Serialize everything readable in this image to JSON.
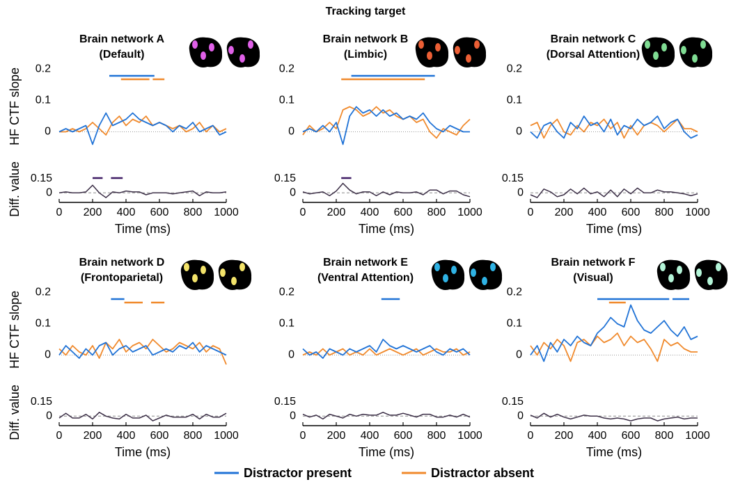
{
  "title": "Tracking target",
  "x_label": "Time (ms)",
  "y_label": "HF CTF slope",
  "diff_label": "Diff. value",
  "series": [
    {
      "name": "Distractor present",
      "color": "#1f72d6"
    },
    {
      "name": "Distractor absent",
      "color": "#f0892b"
    }
  ],
  "diff_color": "#3b2e46",
  "sig_diff_color": "#3d1a63",
  "x": [
    0,
    40,
    80,
    120,
    160,
    200,
    240,
    280,
    320,
    360,
    400,
    440,
    480,
    520,
    560,
    600,
    640,
    680,
    720,
    760,
    800,
    840,
    880,
    920,
    960,
    1000
  ],
  "xlim": [
    0,
    1000
  ],
  "xticks": [
    0,
    200,
    400,
    600,
    800,
    1000
  ],
  "ylim": [
    -0.05,
    0.21
  ],
  "yticks": [
    0,
    0.1,
    0.2
  ],
  "diff_ylim": [
    -0.1,
    0.17
  ],
  "diff_yticks": [
    0,
    0.15
  ],
  "chart_data": [
    {
      "type": "line",
      "title": "Brain network A",
      "subtitle": "(Default)",
      "present": [
        0.0,
        0.01,
        0.0,
        0.01,
        0.02,
        -0.04,
        0.02,
        0.06,
        0.02,
        0.03,
        0.04,
        0.06,
        0.04,
        0.03,
        0.02,
        0.03,
        0.02,
        0.0,
        0.02,
        0.01,
        0.03,
        0.0,
        0.01,
        0.02,
        -0.01,
        0.0
      ],
      "absent": [
        0.0,
        0.0,
        0.01,
        0.0,
        0.01,
        0.03,
        0.01,
        -0.01,
        0.03,
        0.05,
        0.02,
        0.04,
        0.03,
        0.05,
        0.02,
        0.03,
        0.02,
        0.01,
        0.02,
        0.0,
        0.01,
        0.03,
        0.0,
        0.02,
        0.0,
        0.01
      ],
      "diff": [
        0.0,
        0.01,
        0.0,
        0.0,
        0.01,
        0.08,
        0.0,
        -0.05,
        0.01,
        0.0,
        0.02,
        0.01,
        0.01,
        -0.02,
        0.0,
        0.0,
        0.0,
        -0.01,
        0.0,
        0.01,
        0.02,
        -0.03,
        0.01,
        0.0,
        0.0,
        0.01
      ],
      "sig_present": [
        [
          300,
          570
        ]
      ],
      "sig_absent": [
        [
          370,
          540
        ],
        [
          560,
          630
        ]
      ],
      "sig_diff": [
        [
          200,
          260
        ],
        [
          310,
          380
        ]
      ]
    },
    {
      "type": "line",
      "title": "Brain network B",
      "subtitle": "(Limbic)",
      "present": [
        0.0,
        0.01,
        0.0,
        0.02,
        0.0,
        0.03,
        -0.04,
        0.05,
        0.08,
        0.06,
        0.07,
        0.05,
        0.07,
        0.05,
        0.06,
        0.04,
        0.05,
        0.04,
        0.06,
        0.03,
        0.01,
        0.0,
        0.02,
        0.01,
        0.0,
        0.0
      ],
      "absent": [
        -0.01,
        0.02,
        0.0,
        0.01,
        0.03,
        0.01,
        0.07,
        0.08,
        0.07,
        0.05,
        0.06,
        0.08,
        0.06,
        0.07,
        0.05,
        0.04,
        0.05,
        0.03,
        0.04,
        0.0,
        -0.02,
        0.01,
        0.0,
        -0.01,
        0.02,
        0.04
      ],
      "diff": [
        0.01,
        -0.01,
        0.0,
        0.01,
        -0.03,
        0.02,
        0.1,
        0.03,
        -0.01,
        0.01,
        0.01,
        -0.03,
        0.01,
        -0.02,
        0.01,
        0.0,
        0.0,
        0.01,
        -0.02,
        0.03,
        0.03,
        -0.01,
        0.02,
        0.02,
        -0.02,
        -0.04
      ],
      "sig_present": [
        [
          290,
          790
        ]
      ],
      "sig_absent": [
        [
          230,
          730
        ]
      ],
      "sig_diff": [
        [
          230,
          290
        ]
      ]
    },
    {
      "type": "line",
      "title": "Brain network C",
      "subtitle": "(Dorsal Attention)",
      "present": [
        0.0,
        -0.02,
        0.02,
        0.03,
        0.0,
        -0.02,
        0.03,
        0.01,
        0.05,
        0.02,
        0.03,
        0.0,
        0.04,
        -0.01,
        0.02,
        0.01,
        0.04,
        0.02,
        0.03,
        0.05,
        0.01,
        0.03,
        0.04,
        0.0,
        -0.02,
        -0.01
      ],
      "absent": [
        0.02,
        0.03,
        -0.02,
        0.02,
        0.04,
        0.0,
        -0.01,
        0.02,
        0.0,
        0.03,
        0.02,
        0.04,
        0.01,
        0.03,
        -0.02,
        0.02,
        -0.01,
        0.02,
        0.03,
        0.02,
        0.0,
        0.02,
        0.04,
        0.01,
        0.01,
        0.0
      ],
      "diff": [
        -0.02,
        -0.05,
        0.04,
        0.01,
        -0.04,
        -0.02,
        0.04,
        -0.01,
        0.05,
        -0.01,
        0.01,
        -0.04,
        0.03,
        -0.04,
        0.04,
        -0.01,
        0.05,
        0.0,
        0.0,
        0.03,
        0.01,
        0.01,
        0.0,
        -0.01,
        -0.03,
        -0.01
      ]
    },
    {
      "type": "line",
      "title": "Brain network D",
      "subtitle": "(Frontoparietal)",
      "present": [
        0.0,
        0.03,
        0.01,
        -0.01,
        0.02,
        0.0,
        0.03,
        0.04,
        0.0,
        0.02,
        0.03,
        0.01,
        0.02,
        0.03,
        0.0,
        0.01,
        0.02,
        0.01,
        0.03,
        0.02,
        0.04,
        0.01,
        0.03,
        0.02,
        0.01,
        0.0
      ],
      "absent": [
        0.02,
        0.0,
        0.03,
        0.01,
        0.0,
        0.03,
        -0.01,
        0.04,
        0.02,
        0.05,
        0.01,
        0.03,
        0.04,
        0.02,
        0.05,
        0.03,
        0.01,
        0.02,
        0.04,
        0.03,
        0.02,
        0.04,
        0.01,
        0.03,
        0.02,
        -0.03
      ],
      "diff": [
        -0.02,
        0.03,
        -0.02,
        -0.02,
        0.02,
        -0.03,
        0.04,
        0.0,
        -0.02,
        -0.03,
        0.02,
        -0.02,
        -0.02,
        0.01,
        -0.05,
        -0.02,
        0.01,
        -0.01,
        -0.01,
        -0.01,
        0.02,
        -0.03,
        0.02,
        -0.01,
        -0.01,
        0.03
      ],
      "sig_present": [
        [
          310,
          390
        ]
      ],
      "sig_absent": [
        [
          390,
          500
        ],
        [
          550,
          630
        ]
      ]
    },
    {
      "type": "line",
      "title": "Brain network E",
      "subtitle": "(Ventral Attention)",
      "present": [
        0.02,
        0.0,
        0.01,
        -0.01,
        0.02,
        0.01,
        0.0,
        0.02,
        0.01,
        0.02,
        0.03,
        0.01,
        0.05,
        0.03,
        0.02,
        0.03,
        0.02,
        0.01,
        0.02,
        0.03,
        0.01,
        0.0,
        0.02,
        0.01,
        0.02,
        0.0
      ],
      "absent": [
        0.0,
        0.01,
        0.0,
        0.02,
        0.0,
        0.01,
        0.02,
        0.0,
        0.01,
        0.0,
        0.02,
        0.0,
        0.01,
        0.02,
        0.01,
        0.0,
        0.01,
        0.02,
        0.0,
        0.01,
        0.02,
        0.01,
        0.01,
        0.02,
        0.0,
        0.01
      ],
      "diff": [
        0.02,
        -0.01,
        0.01,
        -0.03,
        0.02,
        0.0,
        -0.02,
        0.02,
        0.0,
        0.02,
        0.01,
        0.01,
        0.04,
        0.01,
        0.01,
        0.03,
        0.01,
        -0.01,
        0.02,
        0.02,
        -0.01,
        -0.01,
        0.01,
        -0.01,
        0.02,
        -0.01
      ],
      "sig_present": [
        [
          470,
          580
        ]
      ]
    },
    {
      "type": "line",
      "title": "Brain network F",
      "subtitle": "(Visual)",
      "present": [
        0.0,
        0.03,
        -0.02,
        0.04,
        0.01,
        0.05,
        0.03,
        0.06,
        0.04,
        0.03,
        0.07,
        0.09,
        0.12,
        0.1,
        0.09,
        0.16,
        0.11,
        0.08,
        0.07,
        0.09,
        0.11,
        0.08,
        0.06,
        0.09,
        0.05,
        0.06
      ],
      "absent": [
        0.03,
        0.0,
        0.04,
        0.02,
        0.05,
        0.03,
        -0.02,
        0.04,
        0.05,
        0.03,
        0.06,
        0.04,
        0.05,
        0.07,
        0.03,
        0.06,
        0.04,
        0.05,
        0.02,
        -0.02,
        0.05,
        0.03,
        0.04,
        0.02,
        0.01,
        0.01
      ],
      "diff": [
        0.01,
        -0.02,
        0.03,
        -0.01,
        0.02,
        -0.01,
        -0.03,
        -0.01,
        0.01,
        0.0,
        0.0,
        -0.02,
        -0.03,
        -0.02,
        -0.03,
        -0.05,
        -0.03,
        -0.02,
        -0.02,
        -0.05,
        -0.03,
        -0.02,
        -0.01,
        -0.03,
        -0.02,
        -0.02
      ],
      "sig_present": [
        [
          400,
          830
        ],
        [
          850,
          950
        ]
      ],
      "sig_absent": [
        [
          470,
          570
        ]
      ]
    }
  ]
}
